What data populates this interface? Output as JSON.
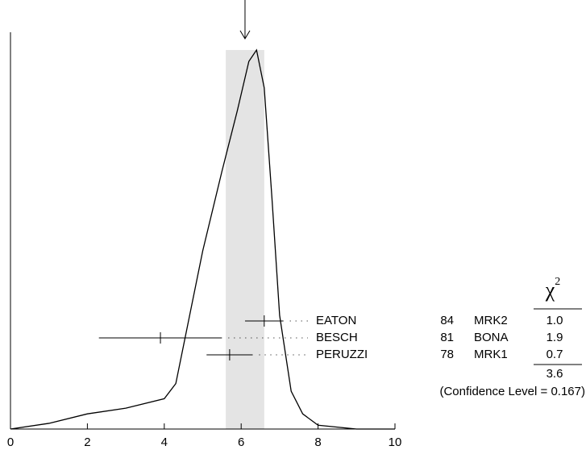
{
  "chart_data": {
    "type": "ideogram",
    "xlim": [
      0,
      10
    ],
    "xticks": [
      0,
      2,
      4,
      6,
      8,
      10
    ],
    "mean": 6.1,
    "band": [
      5.6,
      6.6
    ],
    "band_color": "#e4e4e4",
    "curve": {
      "x": [
        0,
        1,
        2,
        3,
        4,
        4.3,
        4.6,
        5,
        5.5,
        5.9,
        6.2,
        6.4,
        6.6,
        6.8,
        7.0,
        7.3,
        7.6,
        8,
        9,
        10
      ],
      "y": [
        0.0,
        0.015,
        0.04,
        0.055,
        0.08,
        0.12,
        0.27,
        0.47,
        0.68,
        0.84,
        0.97,
        1.0,
        0.9,
        0.61,
        0.3,
        0.1,
        0.04,
        0.01,
        0.0,
        0.0
      ]
    },
    "measurements": [
      {
        "name": "EATON",
        "value": 6.6,
        "error": 0.5,
        "year": "84",
        "technique": "MRK2",
        "chi2": "1.0"
      },
      {
        "name": "BESCH",
        "value": 3.9,
        "error": 1.6,
        "year": "81",
        "technique": "BONA",
        "chi2": "1.9"
      },
      {
        "name": "PERUZZI",
        "value": 5.7,
        "error": 0.6,
        "year": "78",
        "technique": "MRK1",
        "chi2": "0.7"
      }
    ],
    "chi2_header": "χ",
    "chi2_exponent": "2",
    "chi2_total": "3.6",
    "confidence_label": "(Confidence Level = 0.167)"
  }
}
